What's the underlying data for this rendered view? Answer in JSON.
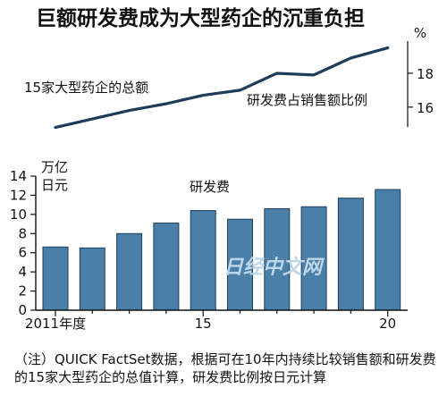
{
  "title": "巨额研发费成为大型药企的沉重负担",
  "note": "（注）QUICK FactSet数据，根据可在10年内持续比较销售额和研发费的15家大型药企的总值计算，研发费比例按日元计算",
  "watermark": "日经中文网",
  "colors": {
    "bar": "#4a7fa8",
    "bar_edge": "#1f3f5b",
    "line": "#1e3c5a",
    "text": "#111111"
  },
  "chart_data": [
    {
      "type": "line",
      "series_label": "研发费占销售额比例",
      "left_label": "15家大型药企的总额",
      "unit": "%",
      "x": [
        2011,
        2012,
        2013,
        2014,
        2015,
        2016,
        2017,
        2018,
        2019,
        2020
      ],
      "values": [
        14.8,
        15.3,
        15.8,
        16.2,
        16.7,
        17.0,
        18.0,
        17.9,
        18.9,
        19.5
      ],
      "yticks": [
        16,
        18
      ],
      "ylim": [
        14.3,
        19.9
      ]
    },
    {
      "type": "bar",
      "unit": "万亿日元",
      "series_label": "研发费",
      "x": [
        2011,
        2012,
        2013,
        2014,
        2015,
        2016,
        2017,
        2018,
        2019,
        2020
      ],
      "values": [
        6.6,
        6.5,
        8.0,
        9.1,
        10.4,
        9.5,
        10.6,
        10.8,
        11.7,
        12.6
      ],
      "xtick_labels": [
        "2011年度",
        "15",
        "20"
      ],
      "yticks": [
        0,
        2,
        4,
        6,
        8,
        10,
        12,
        14
      ],
      "ylim": [
        0,
        14
      ]
    }
  ]
}
